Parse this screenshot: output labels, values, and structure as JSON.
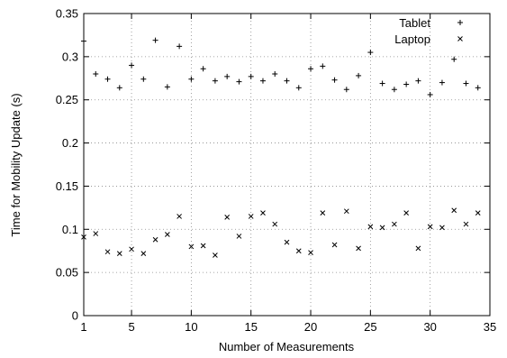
{
  "chart_data": {
    "type": "scatter",
    "xlabel": "Number of Measurements",
    "ylabel": "Time for Mobility Update (s)",
    "xlim": [
      1,
      35
    ],
    "ylim": [
      0,
      0.35
    ],
    "xticks": [
      1,
      5,
      10,
      15,
      20,
      25,
      30,
      35
    ],
    "yticks": [
      0,
      0.05,
      0.1,
      0.15,
      0.2,
      0.25,
      0.3,
      0.35
    ],
    "xtick_labels": [
      "1",
      "5",
      "10",
      "15",
      "20",
      "25",
      "30",
      "35"
    ],
    "ytick_labels": [
      "0",
      "0.05",
      "0.1",
      "0.15",
      "0.2",
      "0.25",
      "0.3",
      "0.35"
    ],
    "grid": true,
    "legend_position": "top-right",
    "series": [
      {
        "name": "Tablet",
        "marker": "plus",
        "x": [
          1,
          2,
          3,
          4,
          5,
          6,
          7,
          8,
          9,
          10,
          11,
          12,
          13,
          14,
          15,
          16,
          17,
          18,
          19,
          20,
          21,
          22,
          23,
          24,
          25,
          26,
          27,
          28,
          29,
          30,
          31,
          32,
          33,
          34
        ],
        "y": [
          0.318,
          0.28,
          0.274,
          0.264,
          0.29,
          0.274,
          0.319,
          0.265,
          0.312,
          0.274,
          0.286,
          0.272,
          0.277,
          0.271,
          0.277,
          0.272,
          0.28,
          0.272,
          0.264,
          0.286,
          0.289,
          0.273,
          0.262,
          0.278,
          0.305,
          0.269,
          0.262,
          0.268,
          0.272,
          0.256,
          0.27,
          0.297,
          0.269,
          0.264
        ]
      },
      {
        "name": "Laptop",
        "marker": "cross",
        "x": [
          1,
          2,
          3,
          4,
          5,
          6,
          7,
          8,
          9,
          10,
          11,
          12,
          13,
          14,
          15,
          16,
          17,
          18,
          19,
          20,
          21,
          22,
          23,
          24,
          25,
          26,
          27,
          28,
          29,
          30,
          31,
          32,
          33,
          34
        ],
        "y": [
          0.091,
          0.095,
          0.074,
          0.072,
          0.077,
          0.072,
          0.088,
          0.094,
          0.115,
          0.08,
          0.081,
          0.07,
          0.114,
          0.092,
          0.115,
          0.119,
          0.106,
          0.085,
          0.075,
          0.073,
          0.119,
          0.082,
          0.121,
          0.078,
          0.103,
          0.102,
          0.106,
          0.119,
          0.078,
          0.103,
          0.102,
          0.122,
          0.106,
          0.119
        ]
      }
    ]
  }
}
